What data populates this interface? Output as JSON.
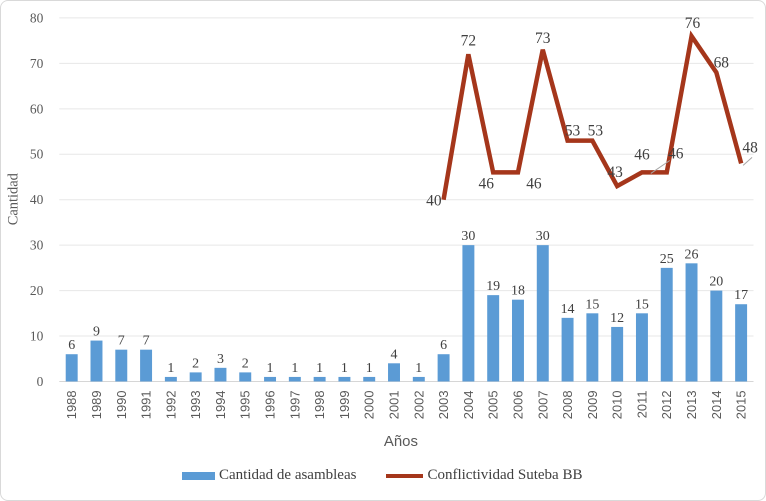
{
  "chart_data": {
    "type": "combo",
    "title": "",
    "xlabel": "Años",
    "ylabel": "Cantidad",
    "ylim": [
      0,
      80
    ],
    "ytick_step": 10,
    "grid": true,
    "legend_position": "bottom",
    "categories": [
      "1988",
      "1989",
      "1990",
      "1991",
      "1992",
      "1993",
      "1994",
      "1995",
      "1996",
      "1997",
      "1998",
      "1999",
      "2000",
      "2001",
      "2002",
      "2003",
      "2004",
      "2005",
      "2006",
      "2007",
      "2008",
      "2009",
      "2010",
      "2011",
      "2012",
      "2013",
      "2014",
      "2015"
    ],
    "series": [
      {
        "name": "Cantidad de asambleas",
        "type": "bar",
        "color": "#5B9BD5",
        "values": [
          6,
          9,
          7,
          7,
          1,
          2,
          3,
          2,
          1,
          1,
          1,
          1,
          1,
          4,
          1,
          6,
          30,
          19,
          18,
          30,
          14,
          15,
          12,
          15,
          25,
          26,
          20,
          17
        ]
      },
      {
        "name": "Conflictividad Suteba BB",
        "type": "line",
        "color": "#A5361B",
        "values": [
          null,
          null,
          null,
          null,
          null,
          null,
          null,
          null,
          null,
          null,
          null,
          null,
          null,
          null,
          null,
          40,
          72,
          46,
          46,
          73,
          53,
          53,
          43,
          46,
          46,
          76,
          68,
          48
        ]
      }
    ]
  },
  "colors": {
    "grid": "#E7E7E7",
    "axis": "#D6D6D6",
    "tick_text": "#595959",
    "data_label": "#404040",
    "leader": "#A6A6A6",
    "frame_border": "#D9D9D9"
  }
}
